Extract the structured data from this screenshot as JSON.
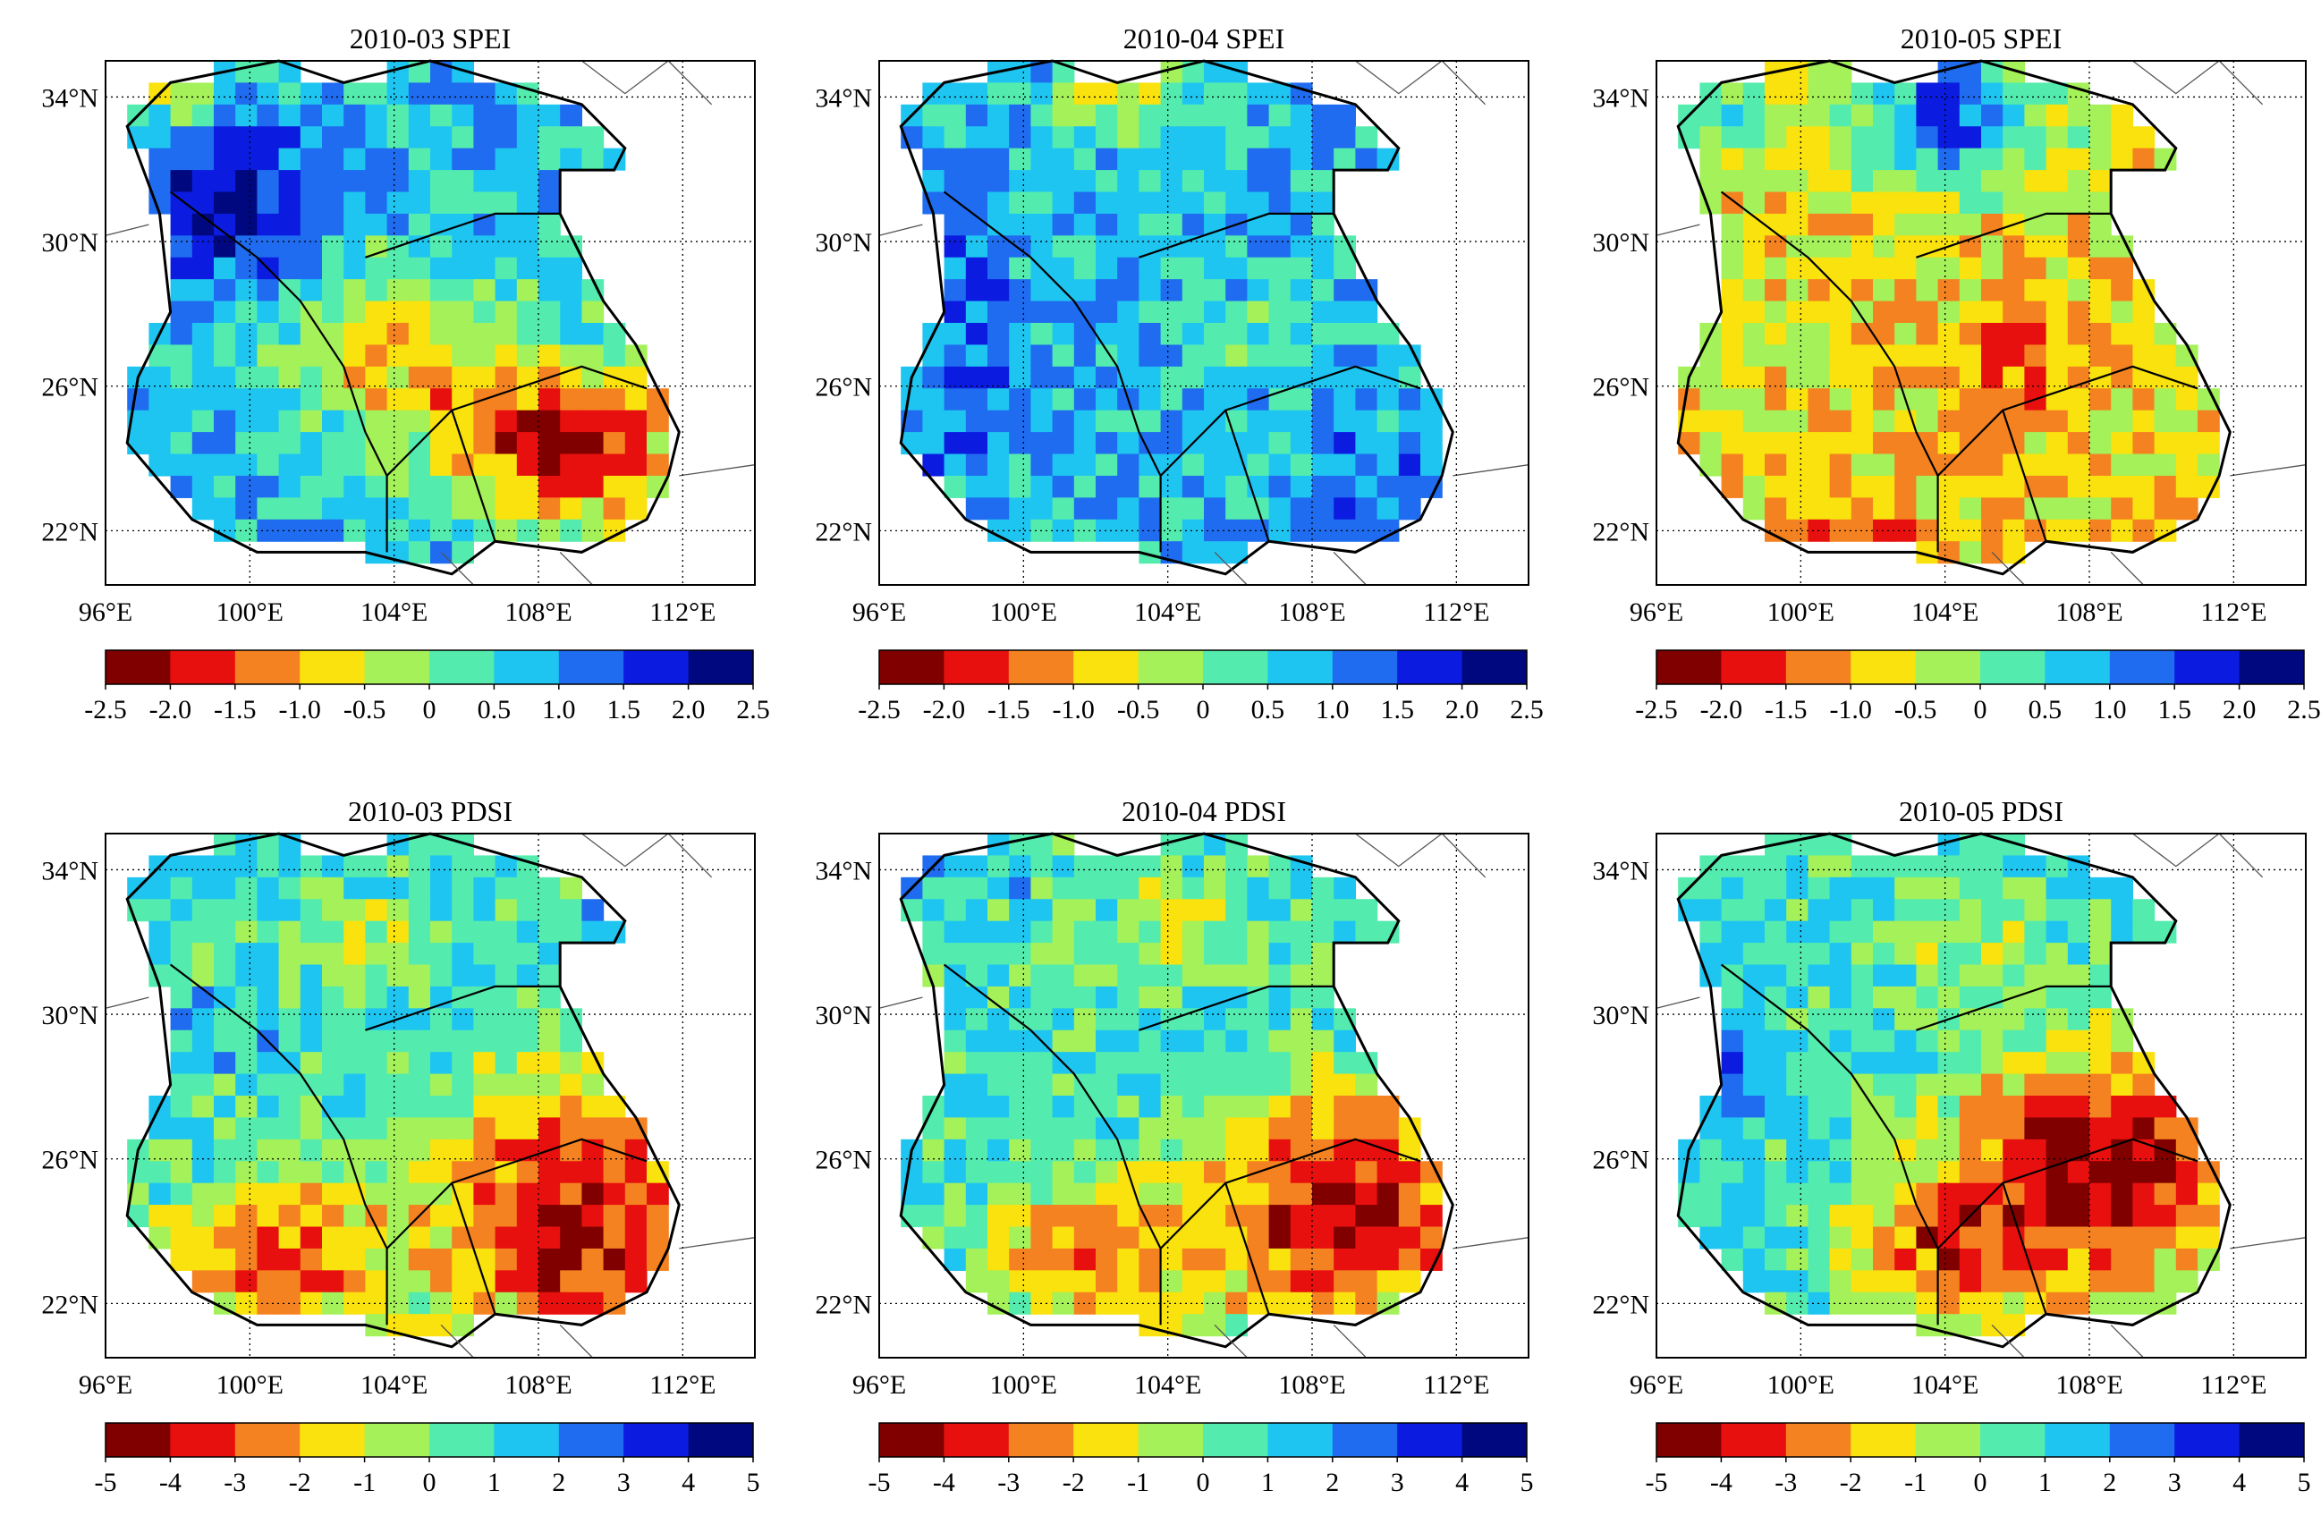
{
  "chart_data": [
    {
      "type": "heatmap",
      "title": "2010-03 SPEI",
      "index": "SPEI",
      "xtick_labels": [
        "96°E",
        "100°E",
        "104°E",
        "108°E",
        "112°E"
      ],
      "ytick_labels": [
        "34°N",
        "30°N",
        "26°N",
        "22°N"
      ],
      "xlim": [
        96,
        114
      ],
      "ylim": [
        20.5,
        35
      ],
      "colorbar": {
        "levels": [
          -2.5,
          -2.0,
          -1.5,
          -1.0,
          -0.5,
          0,
          0.5,
          1.0,
          1.5,
          2.0,
          2.5
        ],
        "labels": [
          "-2.5",
          "-2.0",
          "-1.5",
          "-1.0",
          "-0.5",
          "0",
          "0.5",
          "1.0",
          "1.5",
          "2.0",
          "2.5"
        ],
        "colors": [
          "#800000",
          "#e8100e",
          "#f58220",
          "#f9e20d",
          "#a4f15a",
          "#53ecae",
          "#1fc5f1",
          "#1f6cf0",
          "#0b1ce0",
          "#00087f"
        ]
      },
      "pattern": "spei_mar"
    },
    {
      "type": "heatmap",
      "title": "2010-04 SPEI",
      "index": "SPEI",
      "xtick_labels": [
        "96°E",
        "100°E",
        "104°E",
        "108°E",
        "112°E"
      ],
      "ytick_labels": [
        "34°N",
        "30°N",
        "26°N",
        "22°N"
      ],
      "xlim": [
        96,
        114
      ],
      "ylim": [
        20.5,
        35
      ],
      "colorbar": {
        "levels": [
          -2.5,
          -2.0,
          -1.5,
          -1.0,
          -0.5,
          0,
          0.5,
          1.0,
          1.5,
          2.0,
          2.5
        ],
        "labels": [
          "-2.5",
          "-2.0",
          "-1.5",
          "-1.0",
          "-0.5",
          "0",
          "0.5",
          "1.0",
          "1.5",
          "2.0",
          "2.5"
        ],
        "colors": [
          "#800000",
          "#e8100e",
          "#f58220",
          "#f9e20d",
          "#a4f15a",
          "#53ecae",
          "#1fc5f1",
          "#1f6cf0",
          "#0b1ce0",
          "#00087f"
        ]
      },
      "pattern": "spei_apr"
    },
    {
      "type": "heatmap",
      "title": "2010-05 SPEI",
      "index": "SPEI",
      "xtick_labels": [
        "96°E",
        "100°E",
        "104°E",
        "108°E",
        "112°E"
      ],
      "ytick_labels": [
        "34°N",
        "30°N",
        "26°N",
        "22°N"
      ],
      "xlim": [
        96,
        114
      ],
      "ylim": [
        20.5,
        35
      ],
      "colorbar": {
        "levels": [
          -2.5,
          -2.0,
          -1.5,
          -1.0,
          -0.5,
          0,
          0.5,
          1.0,
          1.5,
          2.0,
          2.5
        ],
        "labels": [
          "-2.5",
          "-2.0",
          "-1.5",
          "-1.0",
          "-0.5",
          "0",
          "0.5",
          "1.0",
          "1.5",
          "2.0",
          "2.5"
        ],
        "colors": [
          "#800000",
          "#e8100e",
          "#f58220",
          "#f9e20d",
          "#a4f15a",
          "#53ecae",
          "#1fc5f1",
          "#1f6cf0",
          "#0b1ce0",
          "#00087f"
        ]
      },
      "pattern": "spei_may"
    },
    {
      "type": "heatmap",
      "title": "2010-03 PDSI",
      "index": "PDSI",
      "xtick_labels": [
        "96°E",
        "100°E",
        "104°E",
        "108°E",
        "112°E"
      ],
      "ytick_labels": [
        "34°N",
        "30°N",
        "26°N",
        "22°N"
      ],
      "xlim": [
        96,
        114
      ],
      "ylim": [
        20.5,
        35
      ],
      "colorbar": {
        "levels": [
          -5,
          -4,
          -3,
          -2,
          -1,
          0,
          1,
          2,
          3,
          4,
          5
        ],
        "labels": [
          "-5",
          "-4",
          "-3",
          "-2",
          "-1",
          "0",
          "1",
          "2",
          "3",
          "4",
          "5"
        ],
        "colors": [
          "#800000",
          "#e8100e",
          "#f58220",
          "#f9e20d",
          "#a4f15a",
          "#53ecae",
          "#1fc5f1",
          "#1f6cf0",
          "#0b1ce0",
          "#00087f"
        ]
      },
      "pattern": "pdsi_mar"
    },
    {
      "type": "heatmap",
      "title": "2010-04 PDSI",
      "index": "PDSI",
      "xtick_labels": [
        "96°E",
        "100°E",
        "104°E",
        "108°E",
        "112°E"
      ],
      "ytick_labels": [
        "34°N",
        "30°N",
        "26°N",
        "22°N"
      ],
      "xlim": [
        96,
        114
      ],
      "ylim": [
        20.5,
        35
      ],
      "colorbar": {
        "levels": [
          -5,
          -4,
          -3,
          -2,
          -1,
          0,
          1,
          2,
          3,
          4,
          5
        ],
        "labels": [
          "-5",
          "-4",
          "-3",
          "-2",
          "-1",
          "0",
          "1",
          "2",
          "3",
          "4",
          "5"
        ],
        "colors": [
          "#800000",
          "#e8100e",
          "#f58220",
          "#f9e20d",
          "#a4f15a",
          "#53ecae",
          "#1fc5f1",
          "#1f6cf0",
          "#0b1ce0",
          "#00087f"
        ]
      },
      "pattern": "pdsi_apr"
    },
    {
      "type": "heatmap",
      "title": "2010-05 PDSI",
      "index": "PDSI",
      "xtick_labels": [
        "96°E",
        "100°E",
        "104°E",
        "108°E",
        "112°E"
      ],
      "ytick_labels": [
        "34°N",
        "30°N",
        "26°N",
        "22°N"
      ],
      "xlim": [
        96,
        114
      ],
      "ylim": [
        20.5,
        35
      ],
      "colorbar": {
        "levels": [
          -5,
          -4,
          -3,
          -2,
          -1,
          0,
          1,
          2,
          3,
          4,
          5
        ],
        "labels": [
          "-5",
          "-4",
          "-3",
          "-2",
          "-1",
          "0",
          "1",
          "2",
          "3",
          "4",
          "5"
        ],
        "colors": [
          "#800000",
          "#e8100e",
          "#f58220",
          "#f9e20d",
          "#a4f15a",
          "#53ecae",
          "#1fc5f1",
          "#1f6cf0",
          "#0b1ce0",
          "#00087f"
        ]
      },
      "pattern": "pdsi_may"
    }
  ]
}
